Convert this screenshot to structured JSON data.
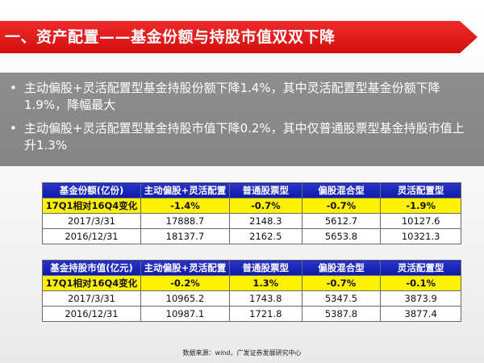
{
  "title": "一、资产配置——基金份额与持股市值双双下降",
  "bullets": [
    "主动偏股+灵活配置型基金持股份额下降1.4%，其中灵活配置型基金份额下降1.9%，降幅最大",
    "主动偏股+灵活配置型基金持股市值下降0.2%，其中仅普通股票型基金持股市值上升1.3%"
  ],
  "bullet_glyph": "•",
  "table1": {
    "headers": [
      "基金份额(亿份)",
      "主动偏股+灵活配置",
      "普通股票型",
      "偏股混合型",
      "灵活配置型"
    ],
    "rows": [
      [
        "17Q1相对16Q4变化",
        "-1.4%",
        "-0.7%",
        "-0.7%",
        "-1.9%"
      ],
      [
        "2017/3/31",
        "17888.7",
        "2148.3",
        "5612.7",
        "10127.6"
      ],
      [
        "2016/12/31",
        "18137.7",
        "2162.5",
        "5653.8",
        "10321.3"
      ]
    ]
  },
  "table2": {
    "headers": [
      "基金持股市值(亿元)",
      "主动偏股+灵活配置",
      "普通股票型",
      "偏股混合型",
      "灵活配置型"
    ],
    "rows": [
      [
        "17Q1相对16Q4变化",
        "-0.2%",
        "1.3%",
        "-0.7%",
        "-0.1%"
      ],
      [
        "2017/3/31",
        "10965.2",
        "1743.8",
        "5347.5",
        "3873.9"
      ],
      [
        "2016/12/31",
        "10987.1",
        "1721.8",
        "5387.8",
        "3877.4"
      ]
    ]
  },
  "source": "数据来源：wind，广发证券发展研究中心",
  "colors": {
    "title_bg": "#d40f0f",
    "bullet_bg": "#888888",
    "header_bg": "#1a22b8",
    "highlight_row": "#fff200"
  }
}
